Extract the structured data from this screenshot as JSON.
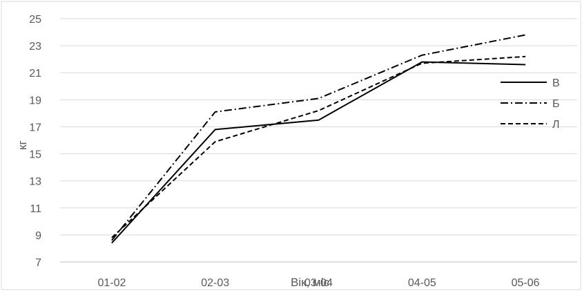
{
  "chart_data": {
    "type": "line",
    "xlabel": "Вік, міс",
    "ylabel": "кг",
    "categories": [
      "01-02",
      "02-03",
      "03-04",
      "04-05",
      "05-06"
    ],
    "ylim": [
      7,
      25
    ],
    "yticks": [
      7,
      9,
      11,
      13,
      15,
      17,
      19,
      21,
      23,
      25
    ],
    "grid": true,
    "legend_position": "right",
    "series": [
      {
        "name": "В",
        "values": [
          8.4,
          16.8,
          17.5,
          21.8,
          21.6
        ],
        "dash": "solid"
      },
      {
        "name": "Б",
        "values": [
          8.6,
          18.1,
          19.1,
          22.3,
          23.8
        ],
        "dash": "dashdot"
      },
      {
        "name": "Л",
        "values": [
          8.8,
          15.9,
          18.2,
          21.7,
          22.2
        ],
        "dash": "dashed"
      }
    ]
  }
}
